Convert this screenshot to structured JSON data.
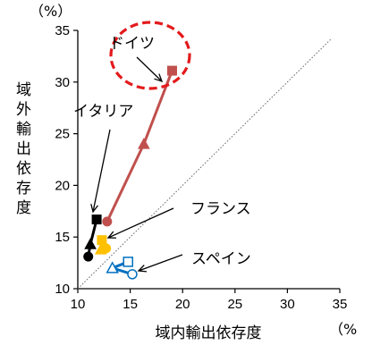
{
  "chart_data": {
    "type": "line",
    "xlabel": "域内輸出依存度",
    "ylabel": "域外輸出依存度",
    "x_unit": "（%",
    "y_unit": "（%）",
    "xlim": [
      10,
      35
    ],
    "ylim": [
      10,
      35
    ],
    "x_ticks": [
      "10",
      "15",
      "20",
      "25",
      "30",
      "35"
    ],
    "y_ticks": [
      "10",
      "15",
      "20",
      "25",
      "30",
      "35"
    ],
    "reference_line": "diagonal dotted line",
    "series": [
      {
        "name": "ドイツ",
        "color": "#c0504d",
        "marker": "mixed",
        "points": [
          {
            "x": 12.8,
            "y": 16.5,
            "marker": "circle"
          },
          {
            "x": 16.3,
            "y": 24.0,
            "marker": "triangle"
          },
          {
            "x": 19.0,
            "y": 31.1,
            "marker": "square"
          }
        ]
      },
      {
        "name": "イタリア",
        "color": "#000000",
        "marker": "mixed",
        "points": [
          {
            "x": 11.0,
            "y": 13.1,
            "marker": "circle"
          },
          {
            "x": 11.2,
            "y": 14.3,
            "marker": "triangle"
          },
          {
            "x": 11.8,
            "y": 16.7,
            "marker": "square"
          }
        ]
      },
      {
        "name": "フランス",
        "color": "#ffc000",
        "marker": "mixed",
        "points": [
          {
            "x": 12.7,
            "y": 13.9,
            "marker": "circle"
          },
          {
            "x": 12.2,
            "y": 13.8,
            "marker": "triangle"
          },
          {
            "x": 12.3,
            "y": 14.7,
            "marker": "square"
          }
        ]
      },
      {
        "name": "スペイン",
        "color": "#0070c0",
        "marker": "mixed",
        "points": [
          {
            "x": 15.2,
            "y": 11.4,
            "marker": "circle"
          },
          {
            "x": 13.3,
            "y": 12.0,
            "marker": "triangle"
          },
          {
            "x": 14.8,
            "y": 12.6,
            "marker": "square"
          }
        ]
      }
    ],
    "annotations": [
      {
        "text": "ドイツ",
        "target_series": "ドイツ",
        "highlight": "dashed red circle"
      },
      {
        "text": "イタリア",
        "target_series": "イタリア"
      },
      {
        "text": "フランス",
        "target_series": "フランス"
      },
      {
        "text": "スペイン",
        "target_series": "スペイン"
      }
    ]
  }
}
